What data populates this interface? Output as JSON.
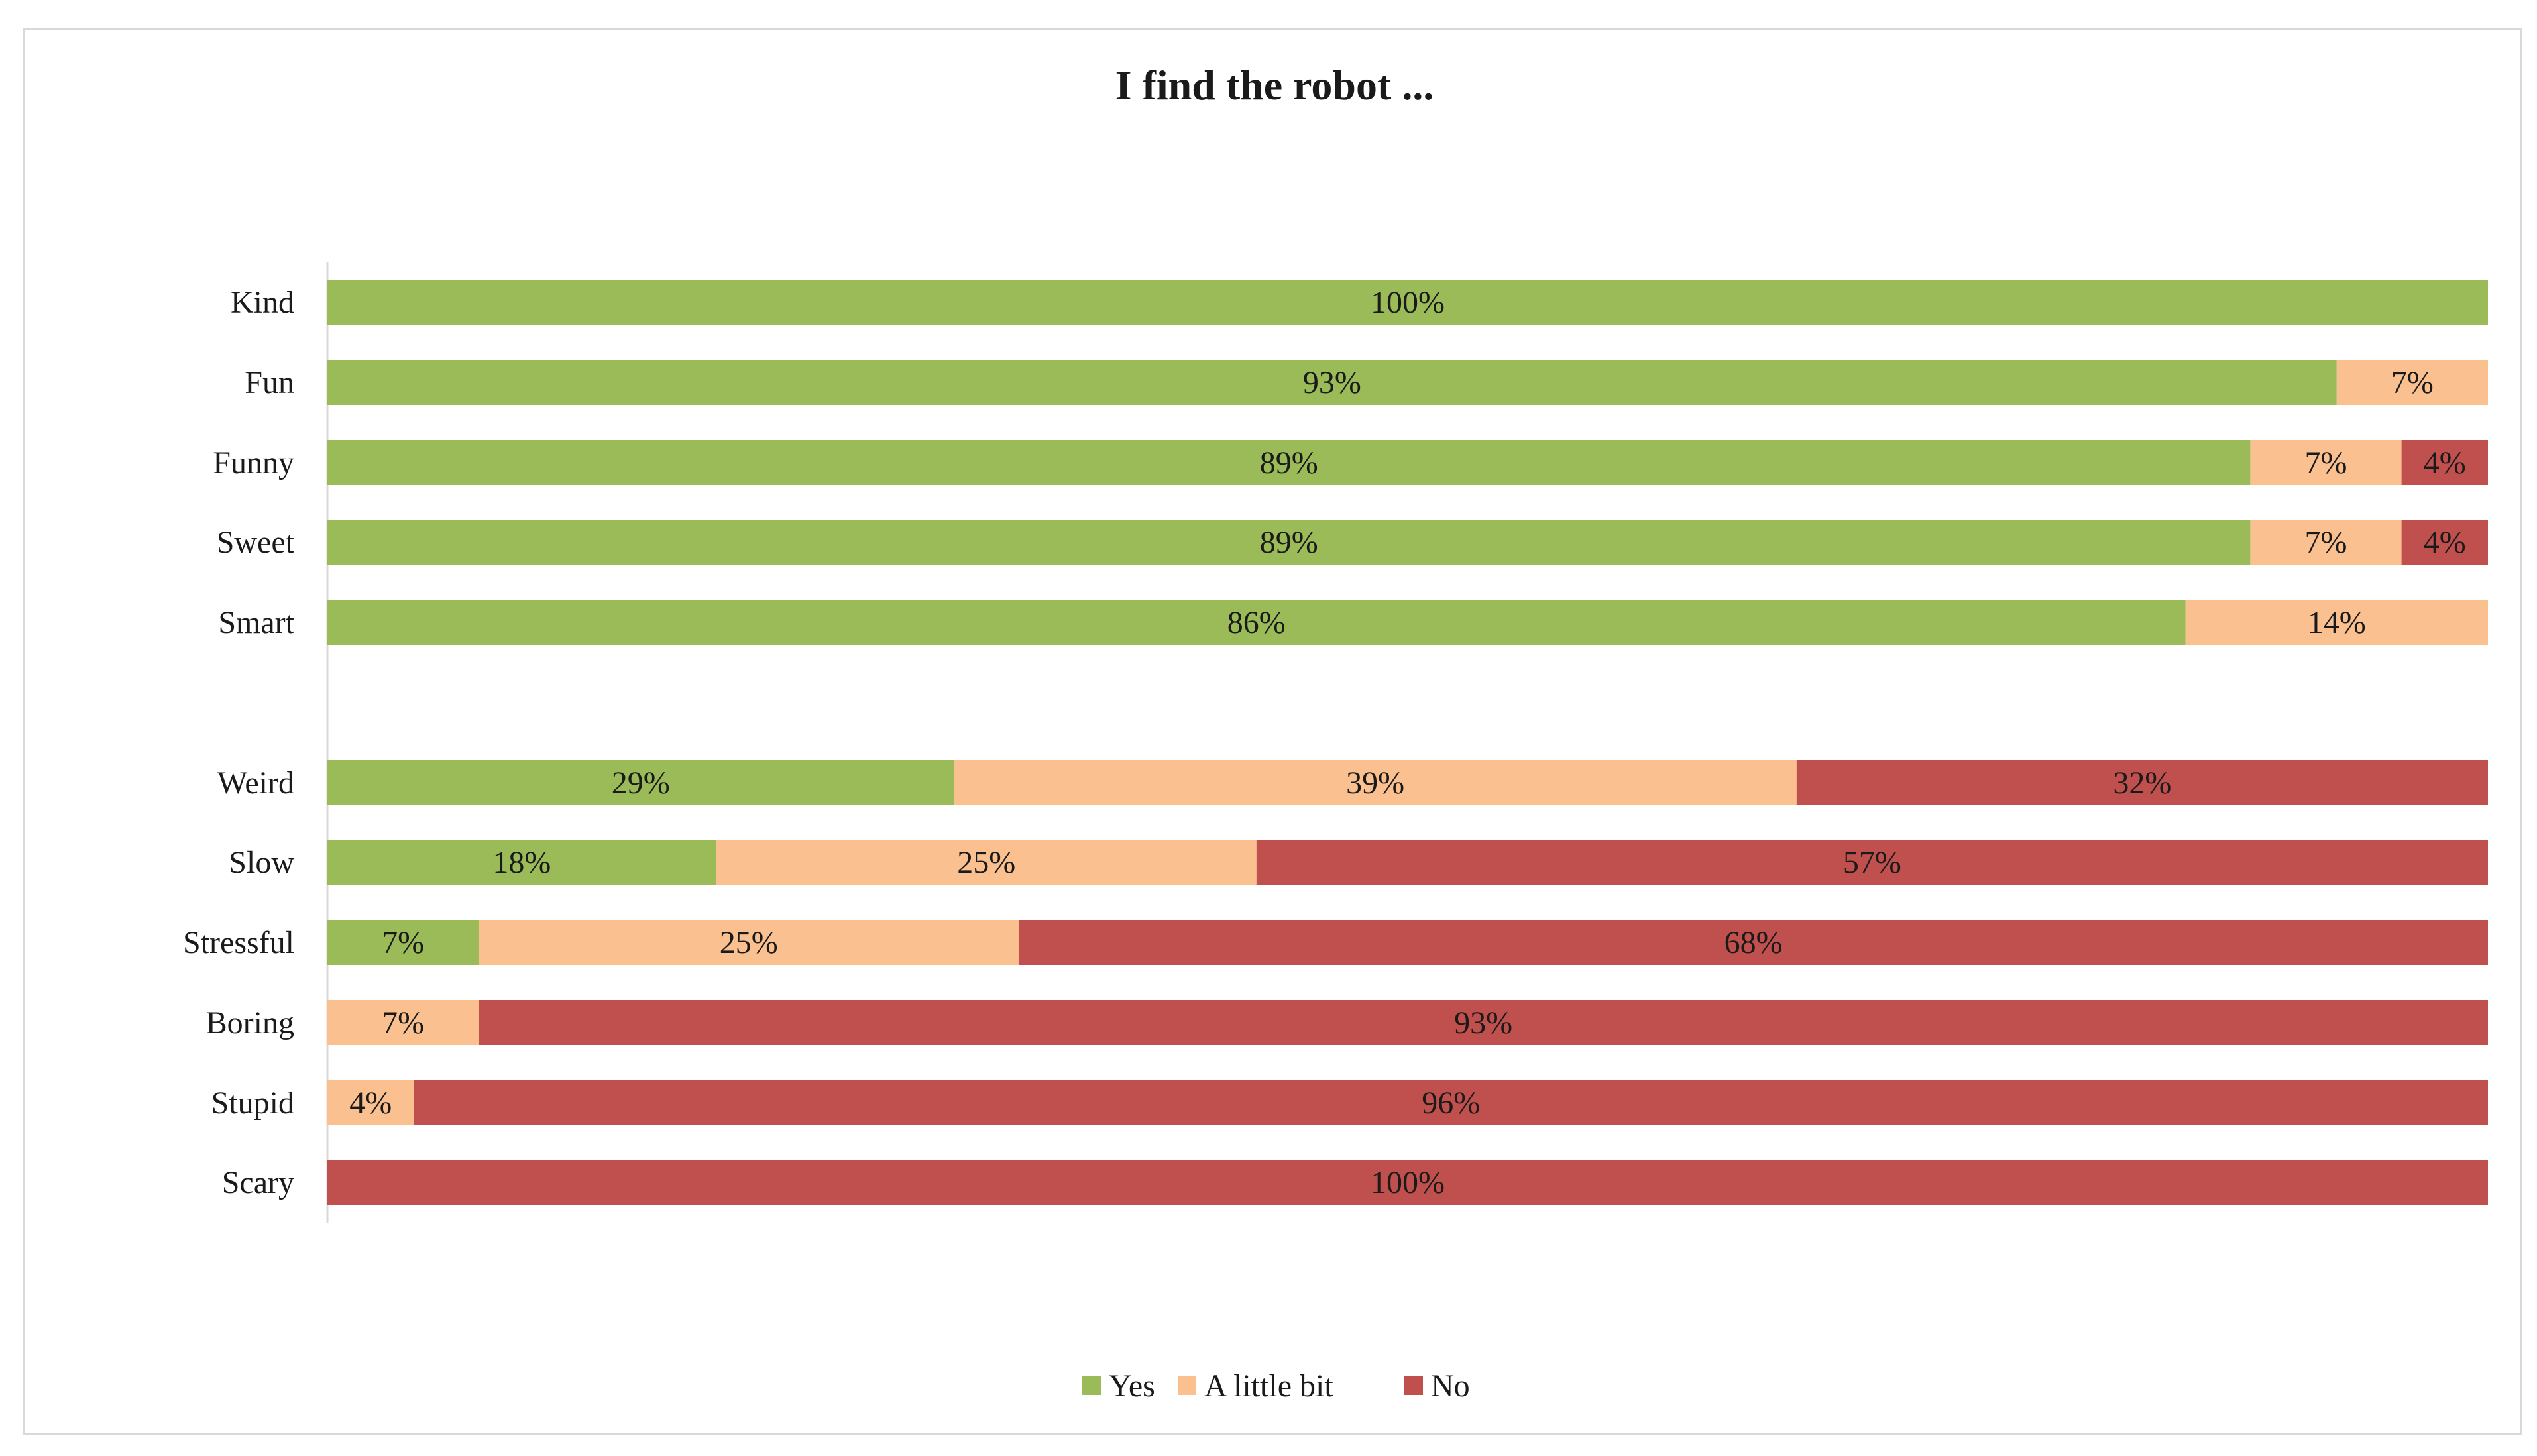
{
  "chart_data": {
    "type": "bar",
    "orientation": "horizontal",
    "stacked": true,
    "title": "I find the robot ...",
    "categories": [
      "Kind",
      "Fun",
      "Funny",
      "Sweet",
      "Smart",
      "Weird",
      "Slow",
      "Stressful",
      "Boring",
      "Stupid",
      "Scary"
    ],
    "series": [
      {
        "name": "Yes",
        "color": "#9bbb59",
        "values": [
          100,
          93,
          89,
          89,
          86,
          29,
          18,
          7,
          0,
          0,
          0
        ]
      },
      {
        "name": "A little bit",
        "color": "#fac090",
        "values": [
          0,
          7,
          7,
          7,
          14,
          39,
          25,
          25,
          7,
          4,
          0
        ]
      },
      {
        "name": "No",
        "color": "#c0504d",
        "values": [
          0,
          0,
          4,
          4,
          0,
          32,
          57,
          68,
          93,
          96,
          100
        ]
      }
    ],
    "data_labels": [
      [
        "100%",
        "",
        ""
      ],
      [
        "93%",
        "7%",
        ""
      ],
      [
        "89%",
        "7%",
        "4%"
      ],
      [
        "89%",
        "7%",
        "4%"
      ],
      [
        "86%",
        "14%",
        ""
      ],
      [
        "29%",
        "39%",
        "32%"
      ],
      [
        "18%",
        "25%",
        "57%"
      ],
      [
        "7%",
        "25%",
        "68%"
      ],
      [
        "",
        "7%",
        "93%"
      ],
      [
        "",
        "4%",
        "96%"
      ],
      [
        "",
        "",
        "100%"
      ]
    ],
    "xlim": [
      0,
      100
    ],
    "grid": false,
    "legend_position": "bottom"
  }
}
